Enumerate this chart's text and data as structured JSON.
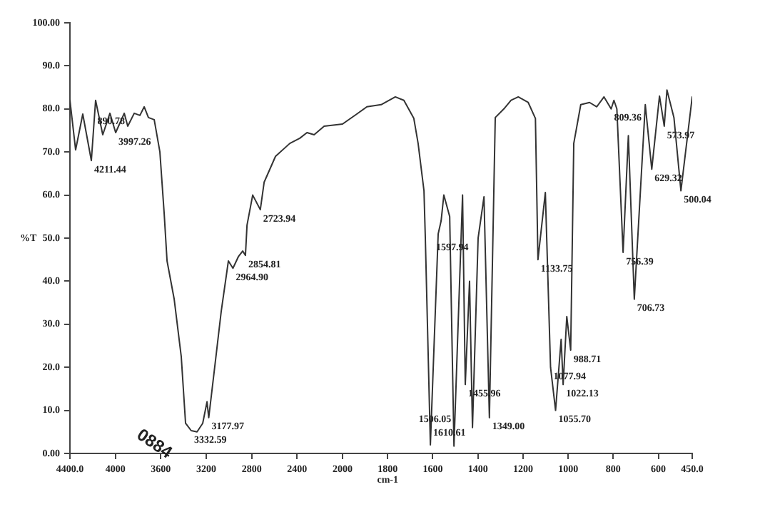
{
  "chart_data": [
    {
      "type": "line",
      "ylabel": "%T",
      "xlim": [
        4400,
        2000
      ],
      "xticks": [
        {
          "value": 4400,
          "label": "4400.0"
        },
        4000,
        3600,
        3200,
        2800,
        2400
      ],
      "ylim": [
        0,
        100
      ],
      "yticks": [
        {
          "value": 0,
          "label": "0.00"
        },
        {
          "value": 10,
          "label": "10.0"
        },
        {
          "value": 20,
          "label": "20.0"
        },
        {
          "value": 30,
          "label": "30.0"
        },
        {
          "value": 40,
          "label": "40.0"
        },
        {
          "value": 50,
          "label": "50.0"
        },
        {
          "value": 60,
          "label": "60.0"
        },
        {
          "value": 70,
          "label": "70.0"
        },
        {
          "value": 80,
          "label": "80.0"
        },
        {
          "value": 90,
          "label": "90.0"
        },
        {
          "value": 100,
          "label": "100.00"
        }
      ],
      "grid": false,
      "legend": false,
      "marker": "none",
      "line_style": "solid",
      "series": [
        {
          "color": "#333333",
          "x": [
            4400,
            4350,
            4287,
            4211.44,
            4174,
            4111,
            4048,
            3997.26,
            3922,
            3891,
            3834,
            3784,
            3746,
            3709,
            3658,
            3608,
            3570,
            3545,
            3482,
            3420,
            3382,
            3332.59,
            3281,
            3231,
            3193,
            3177.97,
            3130,
            3068,
            3005,
            2964.9,
            2917,
            2879,
            2854.81,
            2841,
            2791,
            2723.94,
            2690,
            2590,
            2464,
            2376,
            2313,
            2250,
            2162,
            2000
          ],
          "values": [
            82,
            70.5,
            78.8,
            68,
            82,
            74,
            79,
            74.5,
            79,
            76,
            79,
            78.5,
            80.5,
            78,
            77.5,
            70,
            55.6,
            44.7,
            35.8,
            22.5,
            7,
            5.3,
            5,
            7,
            12,
            8.3,
            19,
            33,
            44.7,
            43,
            45.7,
            47,
            46,
            53,
            60,
            56.6,
            63,
            69,
            72,
            73.2,
            74.5,
            74,
            76,
            76.5
          ]
        }
      ],
      "annotations": [
        {
          "text": "4211.44",
          "x": 4211.44,
          "y": 68
        },
        {
          "text": "3997.26",
          "x": 3997.26,
          "y": 74.5
        },
        {
          "text": "890.78",
          "x": 3891,
          "y": 76
        },
        {
          "text": "3332.59",
          "x": 3332.59,
          "y": 5.3
        },
        {
          "text": "3177.97",
          "x": 3177.97,
          "y": 8.3
        },
        {
          "text": "2964.90",
          "x": 2964.9,
          "y": 43
        },
        {
          "text": "2854.81",
          "x": 2854.81,
          "y": 46
        },
        {
          "text": "2723.94",
          "x": 2723.94,
          "y": 56.6
        },
        "0884"
      ]
    },
    {
      "type": "line",
      "xlabel": "cm-1",
      "tick_labels": "x",
      "xlim": [
        2000,
        450
      ],
      "xticks": [
        2000,
        1800,
        1600,
        1400,
        1200,
        1000,
        800,
        600,
        {
          "value": 450,
          "label": "450.0"
        }
      ],
      "ylim": [
        0,
        100
      ],
      "grid": false,
      "legend": false,
      "marker": "none",
      "line_style": "solid",
      "series": [
        {
          "color": "#333333",
          "x": [
            2000,
            1937,
            1892,
            1829,
            1766,
            1728,
            1684,
            1665,
            1639,
            1633,
            1610.61,
            1576,
            1563,
            1551,
            1525,
            1506.05,
            1468,
            1455.96,
            1437,
            1424,
            1399,
            1373,
            1349,
            1323,
            1285,
            1253,
            1221,
            1177,
            1145,
            1133.75,
            1101,
            1077.94,
            1055.7,
            1031,
            1022.13,
            1006,
            988.71,
            975,
            944,
            905,
            873,
            841,
            809.36,
            797,
            784,
            756.39,
            733,
            706.73,
            658,
            629.32,
            595,
            573.97,
            562,
            531,
            500.04,
            450
          ],
          "values": [
            76.5,
            78.8,
            80.5,
            81,
            82.8,
            82,
            77.8,
            72,
            61,
            50,
            2,
            51,
            54,
            60,
            55,
            1.7,
            60,
            16,
            40,
            6,
            50,
            59.6,
            8.3,
            78,
            80,
            82,
            82.8,
            81.5,
            77.8,
            45,
            60.6,
            20,
            10,
            26.5,
            16,
            31.8,
            24,
            72,
            81,
            81.5,
            80.5,
            82.8,
            80,
            82,
            80,
            46.7,
            73.8,
            35.8,
            81,
            66,
            83,
            76,
            84.4,
            78,
            61,
            82.8
          ]
        }
      ],
      "annotations": [
        {
          "text": "1610.61",
          "x": 1610.61,
          "y": 2
        },
        {
          "text": "1597.94",
          "x": 1597.94,
          "y": 50
        },
        {
          "text": "1506.05",
          "x": 1506.05,
          "y": 1.7
        },
        {
          "text": "1455.96",
          "x": 1455.96,
          "y": 16
        },
        {
          "text": "1349.00",
          "x": 1349,
          "y": 8.3
        },
        {
          "text": "1133.75",
          "x": 1133.75,
          "y": 45
        },
        {
          "text": "1077.94",
          "x": 1077.94,
          "y": 20
        },
        {
          "text": "1055.70",
          "x": 1055.7,
          "y": 10
        },
        {
          "text": "1022.13",
          "x": 1022.13,
          "y": 16
        },
        {
          "text": "988.71",
          "x": 988.71,
          "y": 24
        },
        {
          "text": "809.36",
          "x": 809.36,
          "y": 80
        },
        {
          "text": "756.39",
          "x": 756.39,
          "y": 46.7
        },
        {
          "text": "706.73",
          "x": 706.73,
          "y": 35.8
        },
        {
          "text": "629.32",
          "x": 629.32,
          "y": 66
        },
        {
          "text": "573.97",
          "x": 573.97,
          "y": 76
        },
        {
          "text": "500.04",
          "x": 500.04,
          "y": 61
        }
      ]
    }
  ]
}
